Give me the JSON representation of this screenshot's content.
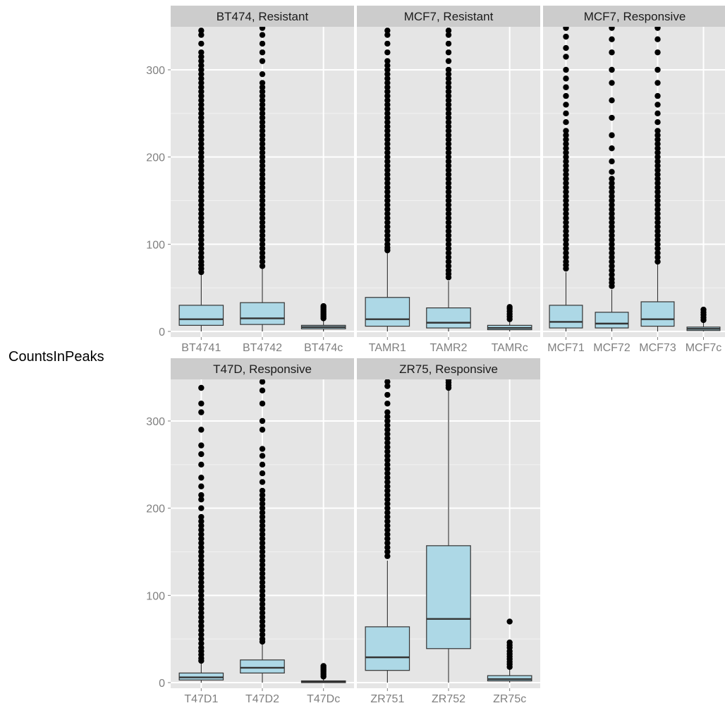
{
  "chart_data": {
    "type": "boxplot",
    "ylabel": "CountsInPeaks",
    "xlabel": "",
    "ylim": [
      0,
      350
    ],
    "yticks": [
      0,
      100,
      200,
      300
    ],
    "grid": true,
    "box_fill": "#add8e6",
    "panel_background": "#e5e5e5",
    "strip_background": "#cccccc",
    "panels": [
      {
        "title": "BT474, Resistant",
        "boxes": [
          {
            "label": "BT4741",
            "q1": 7,
            "median": 14,
            "q3": 30,
            "whisker_low": 0,
            "whisker_high": 65,
            "outliers": [
              68,
              72,
              76,
              80,
              85,
              90,
              95,
              100,
              105,
              110,
              115,
              120,
              125,
              130,
              135,
              140,
              145,
              150,
              155,
              160,
              165,
              170,
              175,
              180,
              185,
              190,
              195,
              200,
              205,
              210,
              215,
              220,
              225,
              230,
              235,
              240,
              245,
              250,
              255,
              260,
              265,
              270,
              275,
              280,
              285,
              290,
              295,
              300,
              305,
              310,
              315,
              320,
              330,
              340,
              345
            ]
          },
          {
            "label": "BT4742",
            "q1": 8,
            "median": 15,
            "q3": 33,
            "whisker_low": 0,
            "whisker_high": 72,
            "outliers": [
              75,
              80,
              85,
              90,
              95,
              100,
              105,
              110,
              115,
              120,
              125,
              130,
              135,
              140,
              145,
              150,
              155,
              160,
              165,
              170,
              175,
              180,
              185,
              190,
              195,
              200,
              205,
              210,
              215,
              220,
              225,
              230,
              235,
              240,
              245,
              250,
              255,
              260,
              265,
              270,
              275,
              280,
              285,
              295,
              310,
              320,
              330,
              340,
              348
            ]
          },
          {
            "label": "BT474c",
            "q1": 3,
            "median": 5,
            "q3": 7,
            "whisker_low": 0,
            "whisker_high": 13,
            "outliers": [
              15,
              17,
              19,
              21,
              23,
              25,
              27,
              29
            ]
          }
        ]
      },
      {
        "title": "MCF7, Resistant",
        "boxes": [
          {
            "label": "TAMR1",
            "q1": 6,
            "median": 14,
            "q3": 39,
            "whisker_low": 0,
            "whisker_high": 90,
            "outliers": [
              93,
              96,
              100,
              105,
              110,
              115,
              120,
              125,
              130,
              135,
              140,
              145,
              150,
              155,
              160,
              165,
              170,
              175,
              180,
              185,
              190,
              195,
              200,
              205,
              210,
              215,
              220,
              225,
              230,
              235,
              240,
              245,
              250,
              255,
              260,
              265,
              270,
              275,
              280,
              285,
              290,
              295,
              300,
              305,
              310,
              320,
              330,
              340,
              345
            ]
          },
          {
            "label": "TAMR2",
            "q1": 4,
            "median": 10,
            "q3": 27,
            "whisker_low": 0,
            "whisker_high": 58,
            "outliers": [
              62,
              66,
              70,
              75,
              80,
              85,
              90,
              95,
              100,
              105,
              110,
              115,
              120,
              125,
              130,
              135,
              140,
              145,
              150,
              155,
              160,
              165,
              170,
              175,
              180,
              185,
              190,
              195,
              200,
              205,
              210,
              215,
              220,
              225,
              230,
              235,
              240,
              245,
              250,
              255,
              260,
              265,
              270,
              275,
              280,
              285,
              290,
              295,
              300,
              310,
              320,
              330,
              340,
              345
            ]
          },
          {
            "label": "TAMRc",
            "q1": 2,
            "median": 4,
            "q3": 7,
            "whisker_low": 0,
            "whisker_high": 12,
            "outliers": [
              14,
              17,
              20,
              23,
              26,
              28
            ]
          }
        ]
      },
      {
        "title": "MCF7, Responsive",
        "boxes": [
          {
            "label": "MCF71",
            "q1": 4,
            "median": 11,
            "q3": 30,
            "whisker_low": 0,
            "whisker_high": 68,
            "outliers": [
              72,
              76,
              80,
              85,
              90,
              95,
              100,
              105,
              110,
              115,
              120,
              125,
              130,
              135,
              140,
              145,
              150,
              155,
              160,
              165,
              170,
              175,
              180,
              185,
              190,
              195,
              200,
              205,
              210,
              215,
              220,
              225,
              230,
              240,
              250,
              260,
              270,
              280,
              290,
              300,
              315,
              325,
              338,
              348
            ]
          },
          {
            "label": "MCF72",
            "q1": 4,
            "median": 9,
            "q3": 22,
            "whisker_low": 0,
            "whisker_high": 48,
            "outliers": [
              52,
              56,
              60,
              65,
              70,
              75,
              80,
              85,
              90,
              95,
              100,
              105,
              110,
              115,
              120,
              125,
              130,
              135,
              140,
              145,
              150,
              155,
              160,
              165,
              170,
              175,
              183,
              195,
              210,
              225,
              245,
              265,
              285,
              300,
              320,
              335,
              348
            ]
          },
          {
            "label": "MCF73",
            "q1": 6,
            "median": 14,
            "q3": 34,
            "whisker_low": 0,
            "whisker_high": 77,
            "outliers": [
              80,
              85,
              90,
              95,
              100,
              105,
              110,
              115,
              120,
              125,
              130,
              135,
              140,
              145,
              150,
              155,
              160,
              165,
              170,
              175,
              180,
              185,
              190,
              195,
              200,
              205,
              210,
              215,
              220,
              225,
              230,
              240,
              250,
              260,
              270,
              285,
              300,
              320,
              335,
              348
            ]
          },
          {
            "label": "MCF7c",
            "q1": 1,
            "median": 3,
            "q3": 5,
            "whisker_low": 0,
            "whisker_high": 11,
            "outliers": [
              13,
              16,
              19,
              22,
              25
            ]
          }
        ]
      },
      {
        "title": "T47D, Responsive",
        "boxes": [
          {
            "label": "T47D1",
            "q1": 3,
            "median": 6,
            "q3": 11,
            "whisker_low": 0,
            "whisker_high": 22,
            "outliers": [
              25,
              28,
              32,
              36,
              40,
              45,
              50,
              55,
              60,
              65,
              70,
              75,
              80,
              85,
              90,
              95,
              100,
              105,
              110,
              115,
              120,
              125,
              130,
              135,
              140,
              145,
              150,
              155,
              160,
              165,
              170,
              175,
              180,
              185,
              190,
              200,
              210,
              215,
              225,
              235,
              250,
              262,
              272,
              290,
              310,
              320,
              338
            ]
          },
          {
            "label": "T47D2",
            "q1": 11,
            "median": 17,
            "q3": 26,
            "whisker_low": 0,
            "whisker_high": 44,
            "outliers": [
              47,
              50,
              55,
              60,
              65,
              70,
              75,
              80,
              85,
              90,
              95,
              100,
              105,
              110,
              115,
              120,
              125,
              130,
              135,
              140,
              145,
              150,
              155,
              160,
              165,
              170,
              175,
              180,
              185,
              190,
              195,
              200,
              205,
              210,
              215,
              220,
              230,
              240,
              250,
              260,
              268,
              290,
              300,
              320,
              335,
              345
            ]
          },
          {
            "label": "T47Dc",
            "q1": 0,
            "median": 1,
            "q3": 2,
            "whisker_low": 0,
            "whisker_high": 5,
            "outliers": [
              7,
              9,
              11,
              13,
              15,
              17,
              19
            ]
          }
        ]
      },
      {
        "title": "ZR75, Responsive",
        "boxes": [
          {
            "label": "ZR751",
            "q1": 14,
            "median": 29,
            "q3": 64,
            "whisker_low": 0,
            "whisker_high": 140,
            "outliers": [
              145,
              150,
              155,
              160,
              165,
              170,
              175,
              180,
              185,
              190,
              195,
              200,
              205,
              210,
              215,
              220,
              225,
              230,
              235,
              240,
              245,
              250,
              255,
              260,
              265,
              270,
              275,
              280,
              285,
              290,
              295,
              300,
              305,
              310,
              320,
              330,
              340,
              345
            ]
          },
          {
            "label": "ZR752",
            "q1": 39,
            "median": 73,
            "q3": 157,
            "whisker_low": 0,
            "whisker_high": 335,
            "outliers": [
              338,
              341,
              344,
              347
            ]
          },
          {
            "label": "ZR75c",
            "q1": 2,
            "median": 4,
            "q3": 8,
            "whisker_low": 0,
            "whisker_high": 16,
            "outliers": [
              18,
              21,
              24,
              27,
              30,
              33,
              36,
              40,
              43,
              46,
              70
            ]
          }
        ]
      }
    ]
  }
}
